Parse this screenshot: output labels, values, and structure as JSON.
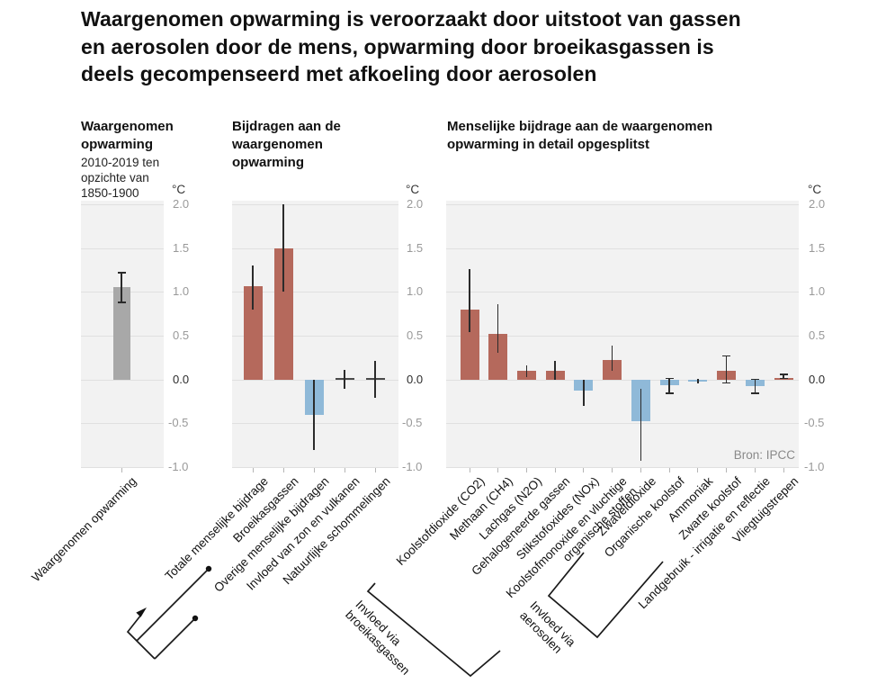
{
  "title_lines": [
    "Waargenomen opwarming is veroorzaakt door uitstoot van gassen",
    "en aerosolen door de mens, opwarming door broeikasgassen is",
    "deels gecompenseerd met afkoeling door aerosolen"
  ],
  "source": "Bron: IPCC",
  "colors": {
    "warming_red": "#b5695c",
    "cooling_blue": "#8fb9d8",
    "observed_gray": "#a8a8a8",
    "neutral_dark": "#4a4a4a",
    "plot_background": "#f2f2f2",
    "gridline": "#e0e0e0",
    "error_bar": "#2b2b2b"
  },
  "annotations": {
    "ghg_label": [
      "Invloed via",
      "broeikasgassen"
    ],
    "aerosol_label": [
      "Invloed via",
      "aerosolen"
    ]
  },
  "chart_data": [
    {
      "type": "bar",
      "title": "Waargenomen opwarming",
      "subtitle": "2010-2019 ten opzichte van 1850-1900",
      "ylabel": "°C",
      "ylim": [
        -1.0,
        2.0
      ],
      "yticks": [
        "2.0",
        "1.5",
        "1.0",
        "0.5",
        "0.0",
        "-0.5",
        "-1.0"
      ],
      "grid": true,
      "categories": [
        "Waargenomen opwarming"
      ],
      "values": [
        1.06
      ],
      "error_low": [
        0.88
      ],
      "error_high": [
        1.22
      ],
      "bar_colors": [
        "gray"
      ],
      "caps": [
        true
      ]
    },
    {
      "type": "bar",
      "title": "Bijdragen aan de waargenomen opwarming",
      "ylabel": "°C",
      "ylim": [
        -1.0,
        2.0
      ],
      "yticks": [
        "2.0",
        "1.5",
        "1.0",
        "0.5",
        "0.0",
        "-0.5",
        "-1.0"
      ],
      "grid": true,
      "categories": [
        "Totale menselijke bijdrage",
        "Broeikasgassen",
        "Overige menselijke bijdragen",
        "Invloed van zon en vulkanen",
        "Natuurlijke schommelingen"
      ],
      "values": [
        1.07,
        1.5,
        -0.4,
        0.02,
        0.02
      ],
      "error_low": [
        0.8,
        1.0,
        -0.8,
        -0.11,
        -0.21
      ],
      "error_high": [
        1.3,
        2.0,
        0.0,
        0.11,
        0.21
      ],
      "bar_colors": [
        "red",
        "red",
        "blue",
        "dark",
        "dark"
      ],
      "caps": [
        false,
        false,
        false,
        false,
        false
      ]
    },
    {
      "type": "bar",
      "title": "Menselijke bijdrage aan de waargenomen opwarming in detail opgesplitst",
      "ylabel": "°C",
      "ylim": [
        -1.0,
        2.0
      ],
      "yticks": [
        "2.0",
        "1.5",
        "1.0",
        "0.5",
        "0.0",
        "-0.5",
        "-1.0"
      ],
      "grid": true,
      "categories": [
        "Koolstofdioxide (CO2)",
        "Methaan (CH4)",
        "Lachgas (N2O)",
        "Gehalogeneerde gassen",
        "Stikstofoxides (NOx)",
        [
          "Koolstofmonoxide en vluchtige",
          "organische stoffen"
        ],
        "Zwaveldioxide",
        "Organische koolstof",
        "Ammoniak",
        "Zwarte koolstof",
        "Landgebruik - irrigatie en reflectie",
        "Vliegtuigstrepen"
      ],
      "values": [
        0.8,
        0.52,
        0.1,
        0.1,
        -0.13,
        0.22,
        -0.48,
        -0.07,
        -0.02,
        0.1,
        -0.08,
        0.02
      ],
      "error_low": [
        0.54,
        0.31,
        0.03,
        0.0,
        -0.3,
        0.1,
        -0.93,
        -0.16,
        -0.05,
        -0.04,
        -0.16,
        0.01
      ],
      "error_high": [
        1.26,
        0.86,
        0.16,
        0.21,
        0.0,
        0.39,
        -0.11,
        0.01,
        0.01,
        0.27,
        0.0,
        0.06
      ],
      "bar_colors": [
        "red",
        "red",
        "red",
        "red",
        "blue",
        "red",
        "blue",
        "blue",
        "blue",
        "red",
        "blue",
        "red"
      ],
      "caps": [
        false,
        false,
        false,
        false,
        false,
        false,
        false,
        true,
        false,
        true,
        true,
        true
      ]
    }
  ]
}
